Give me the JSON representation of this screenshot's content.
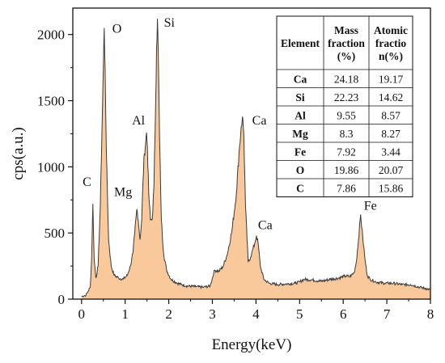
{
  "chart_data": {
    "type": "area",
    "xlabel": "Energy(keV)",
    "ylabel": "cps(a.u.)",
    "xlim": [
      -0.2,
      8
    ],
    "ylim": [
      0,
      2200
    ],
    "x_ticks": [
      "0",
      "1",
      "2",
      "3",
      "4",
      "5",
      "6",
      "7",
      "8"
    ],
    "y_ticks": [
      "0",
      "500",
      "1000",
      "1500",
      "2000"
    ],
    "colors": {
      "fill": "#f9c89b",
      "line": "#3a3a3a"
    },
    "peaks": [
      {
        "label": "C",
        "x": 0.26,
        "y": 720
      },
      {
        "label": "O",
        "x": 0.52,
        "y": 2050
      },
      {
        "label": "Mg",
        "x": 1.27,
        "y": 680
      },
      {
        "label": "Al",
        "x": 1.49,
        "y": 1260
      },
      {
        "label": "Si",
        "x": 1.74,
        "y": 2120
      },
      {
        "label": "Ca",
        "x": 3.69,
        "y": 1380
      },
      {
        "label": "Ca",
        "x": 4.01,
        "y": 480
      },
      {
        "label": "Fe",
        "x": 6.4,
        "y": 640
      }
    ],
    "spectrum_x": [
      0.0,
      0.1,
      0.15,
      0.2,
      0.23,
      0.26,
      0.29,
      0.33,
      0.38,
      0.43,
      0.47,
      0.5,
      0.52,
      0.54,
      0.57,
      0.62,
      0.68,
      0.75,
      0.85,
      0.95,
      1.05,
      1.12,
      1.18,
      1.22,
      1.25,
      1.27,
      1.3,
      1.34,
      1.38,
      1.41,
      1.44,
      1.47,
      1.49,
      1.51,
      1.54,
      1.58,
      1.62,
      1.66,
      1.7,
      1.72,
      1.74,
      1.76,
      1.79,
      1.83,
      1.88,
      1.95,
      2.05,
      2.2,
      2.4,
      2.6,
      2.8,
      2.95,
      3.05,
      3.15,
      3.25,
      3.35,
      3.45,
      3.55,
      3.61,
      3.66,
      3.69,
      3.72,
      3.76,
      3.82,
      3.88,
      3.93,
      3.97,
      4.01,
      4.05,
      4.1,
      4.18,
      4.3,
      4.5,
      4.7,
      4.9,
      5.0,
      5.1,
      5.3,
      5.5,
      5.7,
      5.9,
      6.05,
      6.15,
      6.25,
      6.3,
      6.35,
      6.4,
      6.45,
      6.5,
      6.55,
      6.62,
      6.75,
      6.95,
      7.15,
      7.35,
      7.55,
      7.75,
      7.9,
      8.0
    ],
    "spectrum_y": [
      20,
      30,
      60,
      90,
      300,
      720,
      300,
      160,
      250,
      700,
      1300,
      1750,
      2050,
      1750,
      1100,
      450,
      250,
      180,
      160,
      150,
      180,
      250,
      350,
      500,
      620,
      680,
      600,
      450,
      600,
      900,
      1100,
      1180,
      1260,
      1150,
      800,
      600,
      600,
      850,
      1500,
      1900,
      2120,
      1850,
      1200,
      600,
      350,
      220,
      150,
      120,
      100,
      95,
      90,
      100,
      220,
      210,
      250,
      350,
      520,
      800,
      1100,
      1300,
      1380,
      1250,
      700,
      280,
      320,
      380,
      420,
      480,
      420,
      250,
      150,
      120,
      110,
      115,
      120,
      130,
      150,
      145,
      135,
      150,
      160,
      175,
      170,
      200,
      280,
      450,
      640,
      460,
      300,
      180,
      150,
      130,
      120,
      120,
      110,
      110,
      90,
      80,
      70
    ]
  },
  "table": {
    "headers": [
      [
        "Element",
        ""
      ],
      [
        "Mass",
        "fraction",
        "(%)"
      ],
      [
        "Atomic",
        "fractio",
        "n(%)"
      ]
    ],
    "rows": [
      [
        "Ca",
        "24.18",
        "19.17"
      ],
      [
        "Si",
        "22.23",
        "14.62"
      ],
      [
        "Al",
        "9.55",
        "8.57"
      ],
      [
        "Mg",
        "8.3",
        "8.27"
      ],
      [
        "Fe",
        "7.92",
        "3.44"
      ],
      [
        "O",
        "19.86",
        "20.07"
      ],
      [
        "C",
        "7.86",
        "15.86"
      ]
    ]
  }
}
